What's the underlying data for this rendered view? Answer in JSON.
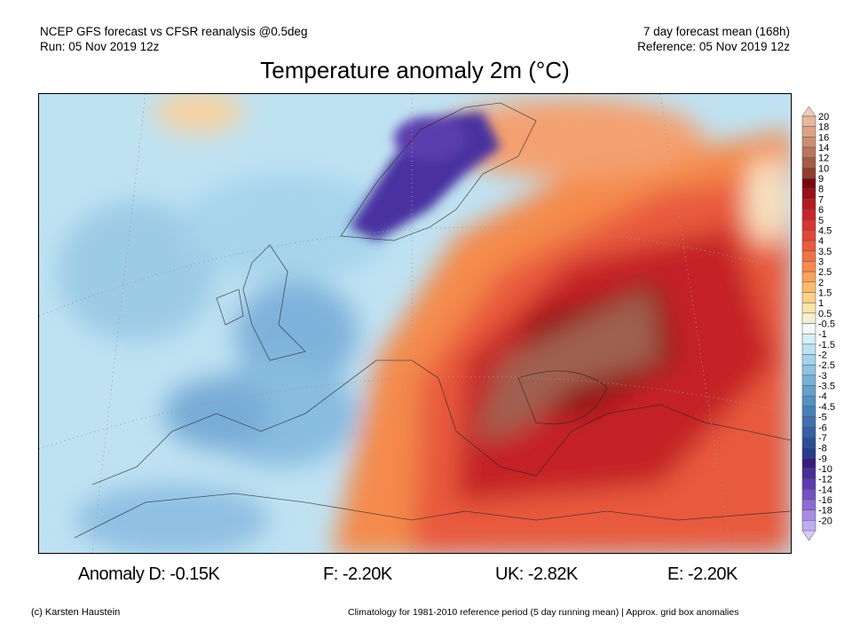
{
  "header": {
    "left_line1": "NCEP GFS forecast vs CFSR reanalysis @0.5deg",
    "left_line2": "Run: 05 Nov 2019 12z",
    "right_line1": "7 day forecast mean (168h)",
    "right_line2": "Reference: 05 Nov 2019 12z"
  },
  "title": "Temperature anomaly 2m (°C)",
  "colorbar": {
    "labels": [
      "20",
      "18",
      "16",
      "14",
      "12",
      "10",
      "9",
      "8",
      "7",
      "6",
      "5",
      "4.5",
      "4",
      "3.5",
      "3",
      "2.5",
      "2",
      "1.5",
      "1",
      "0.5",
      "-0.5",
      "-1",
      "-1.5",
      "-2",
      "-2.5",
      "-3",
      "-3.5",
      "-4",
      "-4.5",
      "-5",
      "-6",
      "-7",
      "-8",
      "-9",
      "-10",
      "-12",
      "-14",
      "-16",
      "-18",
      "-20"
    ],
    "top_triangle_color": "#f4cbb8",
    "bottom_triangle_color": "#d6cbf8",
    "band_colors": [
      "#e8b69c",
      "#dca286",
      "#cc8e70",
      "#b8765a",
      "#a45c44",
      "#8e3e2a",
      "#7a0812",
      "#9c0e1a",
      "#b41a22",
      "#c8242a",
      "#d83232",
      "#e24636",
      "#ea5c3e",
      "#f07246",
      "#f68a50",
      "#f9a25c",
      "#fbba6c",
      "#fcd088",
      "#fae4a6",
      "#f2f0d0",
      "#f6f6f6",
      "#d6eef8",
      "#bce2f2",
      "#a4d2ea",
      "#8ec2e0",
      "#78b0d6",
      "#66a0cc",
      "#5690c2",
      "#4880b8",
      "#3c70ae",
      "#3460a4",
      "#2c4e98",
      "#283c8a",
      "#361e82",
      "#4a2c98",
      "#5c3cae",
      "#7452c2",
      "#8c6cd4",
      "#a68ae4",
      "#beabf2"
    ]
  },
  "anomalies": {
    "d": "Anomaly D: -0.15K",
    "f": "F: -2.20K",
    "uk": "UK: -2.82K",
    "e": "E: -2.20K"
  },
  "footer": {
    "credit": "(c) Karsten Haustein",
    "note": "Climatology for 1981-2010 reference period (5 day running mean) | Approx. grid box anomalies"
  }
}
